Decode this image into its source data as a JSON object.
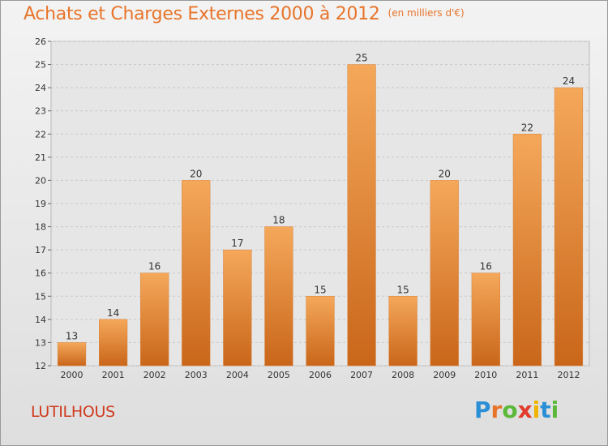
{
  "chart_data": {
    "type": "bar",
    "title": "Achats et Charges Externes 2000 à 2012",
    "subtitle": "(en milliers d'€)",
    "categories": [
      "2000",
      "2001",
      "2002",
      "2003",
      "2004",
      "2005",
      "2006",
      "2007",
      "2008",
      "2009",
      "2010",
      "2011",
      "2012"
    ],
    "values": [
      13,
      14,
      16,
      20,
      17,
      18,
      15,
      25,
      15,
      20,
      16,
      22,
      24
    ],
    "xlabel": "",
    "ylabel": "",
    "ylim": [
      12,
      26
    ],
    "yticks": [
      12,
      13,
      14,
      15,
      16,
      17,
      18,
      19,
      20,
      21,
      22,
      23,
      24,
      25,
      26
    ],
    "grid": true,
    "bar_color_top": "#f5a85a",
    "bar_color_bottom": "#c9661a"
  },
  "place_name": "LUTILHOUS",
  "logo": {
    "text": "Proxiti",
    "letters": [
      "P",
      "r",
      "o",
      "x",
      "i",
      "t",
      "i"
    ],
    "colors": [
      "#2a8fd6",
      "#e8742a",
      "#5cb83a",
      "#e23b2e",
      "#f0b400",
      "#2a8fd6",
      "#5cb83a"
    ]
  }
}
